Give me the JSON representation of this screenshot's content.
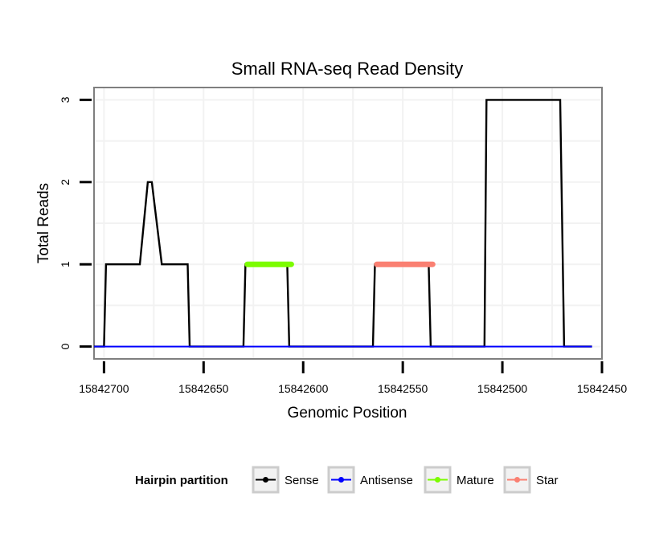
{
  "chart_data": {
    "type": "line",
    "title": "Small RNA-seq Read Density",
    "xlabel": "Genomic Position",
    "ylabel": "Total Reads",
    "xlim": [
      15842705,
      15842450
    ],
    "ylim": [
      -0.15,
      3.15
    ],
    "x_reversed": true,
    "grid": true,
    "x_ticks": [
      15842700,
      15842650,
      15842600,
      15842550,
      15842500,
      15842450
    ],
    "x_tick_labels": [
      "15842700",
      "15842650",
      "15842600",
      "15842550",
      "15842500",
      "15842450"
    ],
    "y_ticks": [
      0,
      1,
      2,
      3
    ],
    "y_tick_labels": [
      "0",
      "1",
      "2",
      "3"
    ],
    "legend": {
      "title": "Hairpin partition",
      "position": "bottom",
      "entries": [
        {
          "label": "Sense",
          "color": "#000000"
        },
        {
          "label": "Antisense",
          "color": "#0000ff"
        },
        {
          "label": "Mature",
          "color": "#7cfc00"
        },
        {
          "label": "Star",
          "color": "#fa8072"
        }
      ]
    },
    "series": [
      {
        "name": "Sense",
        "color": "#000000",
        "x": [
          15842705,
          15842700,
          15842699,
          15842685,
          15842682,
          15842678,
          15842676,
          15842671,
          15842669,
          15842658,
          15842657,
          15842630,
          15842629,
          15842608,
          15842607,
          15842565,
          15842564,
          15842537,
          15842536,
          15842509,
          15842508,
          15842493,
          15842492,
          15842471,
          15842469,
          15842455
        ],
        "values": [
          0,
          0,
          1,
          1,
          1,
          2,
          2,
          1,
          1,
          1,
          0,
          0,
          1,
          1,
          0,
          0,
          1,
          1,
          0,
          0,
          3,
          3,
          3,
          3,
          0,
          0
        ]
      },
      {
        "name": "Antisense",
        "color": "#0000ff",
        "x": [
          15842705,
          15842455
        ],
        "values": [
          0,
          0
        ]
      },
      {
        "name": "Mature",
        "color": "#7cfc00",
        "x": [
          15842628,
          15842606
        ],
        "values": [
          1,
          1
        ]
      },
      {
        "name": "Star",
        "color": "#fa8072",
        "x": [
          15842563,
          15842535
        ],
        "values": [
          1,
          1
        ]
      }
    ]
  }
}
